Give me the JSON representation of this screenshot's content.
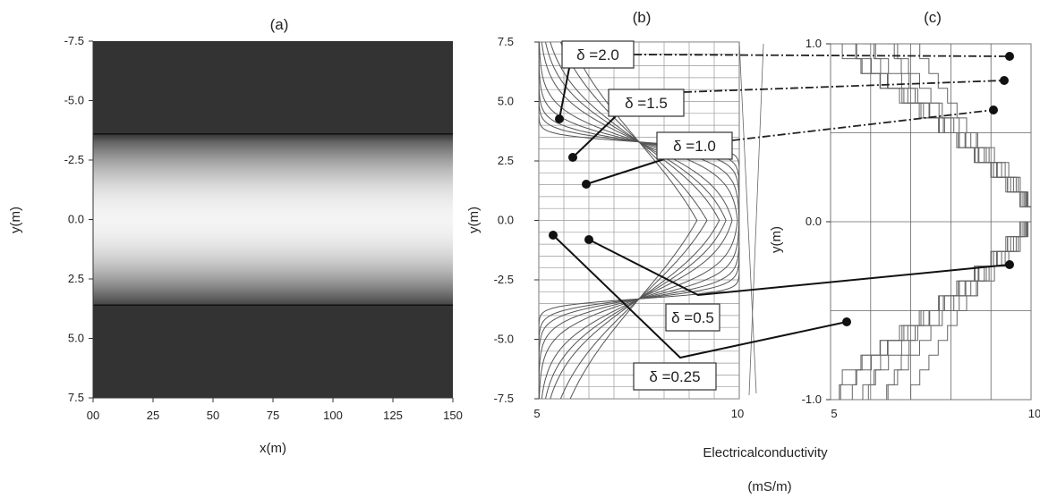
{
  "chart_data": [
    {
      "panel": "(a)",
      "type": "heatmap",
      "title": "(a)",
      "xlabel": "x(m)",
      "ylabel": "y(m)",
      "xlim": [
        0,
        150
      ],
      "ylim": [
        -7.5,
        7.5
      ],
      "y_inverted": true,
      "x_tick_labels": [
        "00",
        "25",
        "50",
        "75",
        "100",
        "125",
        "150"
      ],
      "y_tick_labels": [
        "-7.5",
        "-5.0",
        "-2.5",
        "0.0",
        "2.5",
        "5.0",
        "7.5"
      ],
      "boundary_lines_y": [
        -3.6,
        3.6
      ],
      "colormap": [
        "#333333",
        "#f4f4f4"
      ],
      "grid": false
    },
    {
      "panel": "(b)",
      "type": "line",
      "title": "(b)",
      "xlabel": "Electricalconductivity",
      "xlabel_unit": "(mS/m)",
      "ylabel": "y(m)",
      "xlim": [
        5,
        10
      ],
      "ylim": [
        -7.5,
        7.5
      ],
      "x_tick_labels": [
        "5",
        "10"
      ],
      "y_tick_labels": [
        "7.5",
        "5.0",
        "2.5",
        "0.0",
        "-2.5",
        "-5.0",
        "-7.5"
      ],
      "grid": true,
      "series": [
        {
          "name": "δ =2.0",
          "delta": 2.0
        },
        {
          "name": "δ =1.5",
          "delta": 1.5
        },
        {
          "name": "δ =1.0",
          "delta": 1.0
        },
        {
          "name": "δ =0.5",
          "delta": 0.5
        },
        {
          "name": "δ =0.25",
          "delta": 0.25
        }
      ]
    },
    {
      "panel": "(c)",
      "type": "line",
      "title": "(c)",
      "ylabel": "y(m)",
      "xlim": [
        5,
        10
      ],
      "ylim": [
        -1.0,
        1.0
      ],
      "x_tick_labels": [
        "5",
        "10"
      ],
      "y_tick_labels": [
        "1.0",
        "0.0",
        "-1.0"
      ],
      "grid": true
    }
  ]
}
